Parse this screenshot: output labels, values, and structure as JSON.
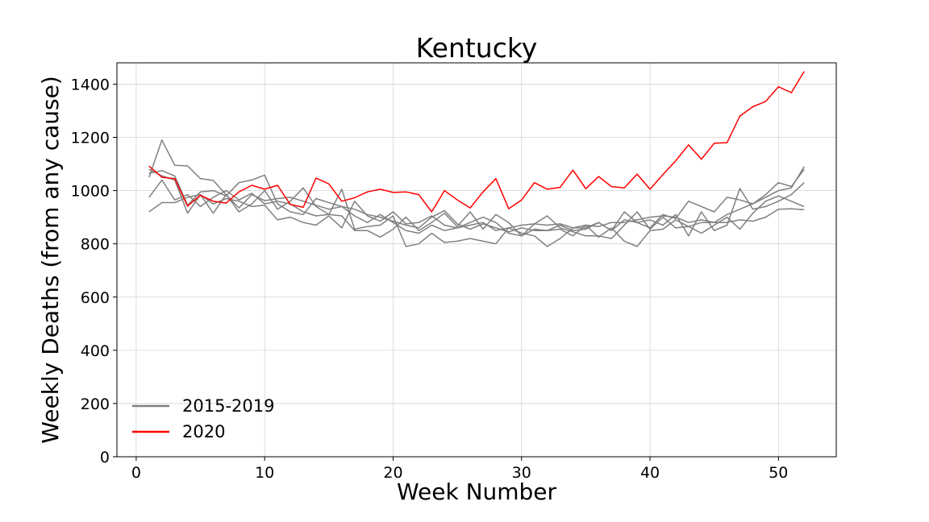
{
  "chart_data": {
    "type": "line",
    "title": "Kentucky",
    "xlabel": "Week Number",
    "ylabel": "Weekly Deaths (from any cause)",
    "xlim": [
      -1.5,
      54.5
    ],
    "ylim": [
      0,
      1480
    ],
    "xticks": [
      0,
      10,
      20,
      30,
      40,
      50
    ],
    "yticks": [
      0,
      200,
      400,
      600,
      800,
      1000,
      1200,
      1400
    ],
    "grid": true,
    "legend": {
      "placement": "lower-left",
      "entries": [
        {
          "label": "2015-2019",
          "color": "#808080"
        },
        {
          "label": "2020",
          "color": "#ff0000"
        }
      ]
    },
    "x": [
      1,
      2,
      3,
      4,
      5,
      6,
      7,
      8,
      9,
      10,
      11,
      12,
      13,
      14,
      15,
      16,
      17,
      18,
      19,
      20,
      21,
      22,
      23,
      24,
      25,
      26,
      27,
      28,
      29,
      30,
      31,
      32,
      33,
      34,
      35,
      36,
      37,
      38,
      39,
      40,
      41,
      42,
      43,
      44,
      45,
      46,
      47,
      48,
      49,
      50,
      51,
      52
    ],
    "series": [
      {
        "color": "#808080",
        "values": [
          1050,
          1190,
          1095,
          1093,
          1045,
          1038,
          985,
          935,
          985,
          962,
          970,
          975,
          960,
          945,
          930,
          940,
          905,
          880,
          910,
          880,
          850,
          840,
          870,
          850,
          860,
          870,
          880,
          850,
          860,
          870,
          875,
          870,
          875,
          860,
          870,
          865,
          880,
          880,
          890,
          900,
          905,
          900,
          880,
          890,
          880,
          910,
          930,
          950,
          975,
          1000,
          1010,
          1090
        ]
      },
      {
        "color": "#808080",
        "values": [
          1065,
          1075,
          1055,
          945,
          995,
          1000,
          980,
          1030,
          1040,
          1058,
          950,
          920,
          910,
          970,
          955,
          940,
          930,
          910,
          900,
          885,
          870,
          860,
          900,
          925,
          875,
          855,
          875,
          860,
          845,
          860,
          850,
          850,
          870,
          850,
          855,
          880,
          850,
          890,
          880,
          860,
          910,
          895,
          960,
          940,
          920,
          975,
          965,
          950,
          985,
          1030,
          1015,
          1080
        ]
      },
      {
        "color": "#808080",
        "values": [
          975,
          1040,
          965,
          985,
          940,
          975,
          1000,
          965,
          990,
          950,
          960,
          950,
          920,
          905,
          910,
          1005,
          855,
          865,
          870,
          905,
          790,
          800,
          840,
          805,
          810,
          820,
          810,
          800,
          860,
          840,
          830,
          790,
          820,
          860,
          860,
          880,
          850,
          920,
          880,
          890,
          870,
          910,
          830,
          920,
          850,
          870,
          1008,
          930,
          940,
          960,
          985,
          1030
        ]
      },
      {
        "color": "#808080",
        "values": [
          920,
          955,
          955,
          975,
          985,
          950,
          970,
          960,
          940,
          945,
          890,
          900,
          880,
          870,
          905,
          860,
          960,
          905,
          885,
          920,
          875,
          880,
          905,
          870,
          860,
          880,
          900,
          880,
          840,
          830,
          855,
          850,
          855,
          830,
          870,
          825,
          860,
          810,
          790,
          850,
          855,
          890,
          865,
          880,
          880,
          880,
          890,
          885,
          900,
          930,
          932,
          928
        ]
      },
      {
        "color": "#808080",
        "values": [
          1080,
          1055,
          1040,
          915,
          985,
          915,
          985,
          920,
          950,
          1000,
          930,
          960,
          1010,
          940,
          910,
          905,
          850,
          850,
          825,
          855,
          900,
          850,
          880,
          915,
          865,
          920,
          855,
          910,
          880,
          830,
          875,
          905,
          860,
          845,
          830,
          830,
          820,
          870,
          920,
          855,
          900,
          860,
          865,
          840,
          870,
          900,
          855,
          915,
          960,
          980,
          960,
          940
        ]
      },
      {
        "color": "#ff0000",
        "values": [
          1092,
          1050,
          1045,
          942,
          982,
          960,
          953,
          995,
          1020,
          1005,
          1020,
          948,
          937,
          1047,
          1025,
          960,
          973,
          995,
          1005,
          993,
          995,
          985,
          920,
          1000,
          965,
          935,
          995,
          1045,
          932,
          965,
          1030,
          1005,
          1012,
          1077,
          1007,
          1053,
          1015,
          1010,
          1062,
          1005,
          1060,
          1112,
          1172,
          1118,
          1178,
          1180,
          1280,
          1315,
          1335,
          1390,
          1368,
          1448
        ]
      }
    ]
  }
}
